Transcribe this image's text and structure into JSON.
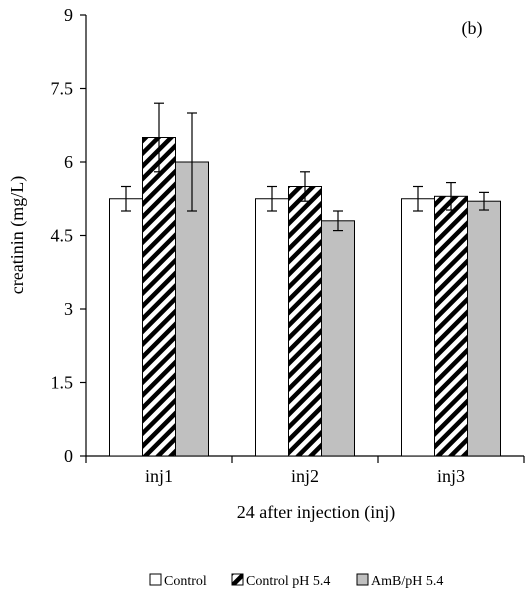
{
  "chart_data": {
    "type": "bar",
    "panel_label": "(b)",
    "xlabel": "24 after injection (inj)",
    "ylabel": "creatinin (mg/L)",
    "ylim": [
      0,
      9
    ],
    "yticks": [
      "0",
      "1.5",
      "3",
      "4.5",
      "6",
      "7.5",
      "9"
    ],
    "ytick_values": [
      0,
      1.5,
      3,
      4.5,
      6,
      7.5,
      9
    ],
    "categories": [
      "inj1",
      "inj2",
      "inj3"
    ],
    "series": [
      {
        "name": "Control",
        "values": [
          5.25,
          5.25,
          5.25
        ],
        "errors": [
          0.25,
          0.25,
          0.25
        ],
        "fill": "#ffffff",
        "pattern": "none"
      },
      {
        "name": "Control pH 5.4",
        "values": [
          6.5,
          5.5,
          5.3
        ],
        "errors": [
          0.7,
          0.3,
          0.28
        ],
        "fill": "#ffffff",
        "pattern": "diagonal-stripes"
      },
      {
        "name": "AmB/pH 5.4",
        "values": [
          6.0,
          4.8,
          5.2
        ],
        "errors": [
          1.0,
          0.2,
          0.18
        ],
        "fill": "#c0c0c0",
        "pattern": "none"
      }
    ],
    "legend_placement": "bottom",
    "grid": false
  }
}
